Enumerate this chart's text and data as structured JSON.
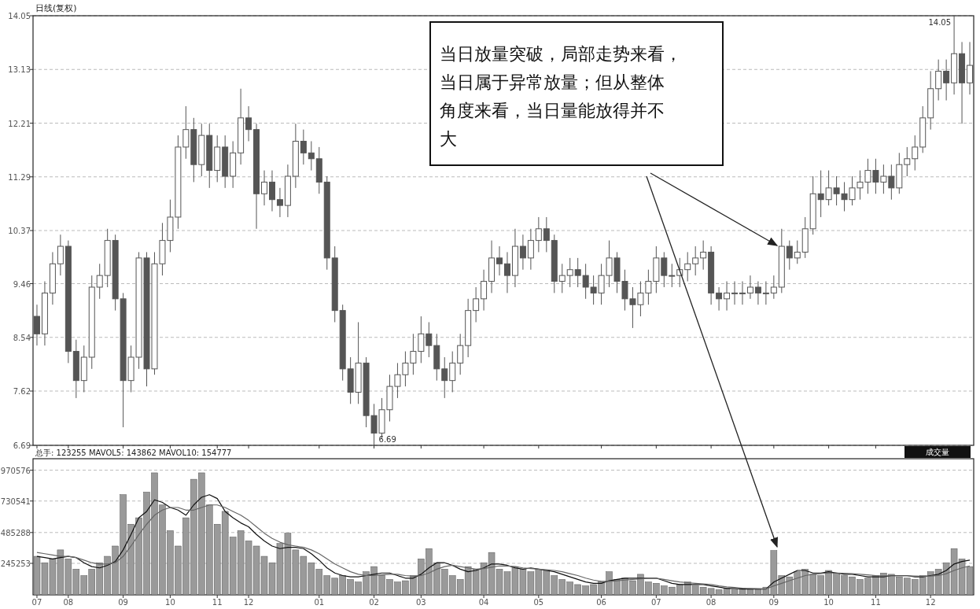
{
  "chart_data": [
    {
      "type": "candlestick",
      "title": "日线(复权)",
      "categories": [
        "07",
        null,
        null,
        null,
        "08",
        null,
        null,
        null,
        null,
        null,
        null,
        "09",
        null,
        null,
        null,
        null,
        null,
        "10",
        null,
        null,
        null,
        null,
        null,
        "11",
        null,
        null,
        null,
        "12",
        null,
        null,
        null,
        null,
        null,
        null,
        null,
        null,
        "01",
        null,
        null,
        null,
        null,
        null,
        null,
        "02",
        null,
        null,
        null,
        null,
        null,
        "03",
        null,
        null,
        null,
        null,
        null,
        null,
        null,
        "04",
        null,
        null,
        null,
        null,
        null,
        null,
        "05",
        null,
        null,
        null,
        null,
        null,
        null,
        null,
        "06",
        null,
        null,
        null,
        null,
        null,
        null,
        "07",
        null,
        null,
        null,
        null,
        null,
        null,
        "08",
        null,
        null,
        null,
        null,
        null,
        null,
        null,
        "09",
        null,
        null,
        null,
        null,
        null,
        null,
        "10",
        null,
        null,
        null,
        null,
        null,
        "11",
        null,
        null,
        null,
        null,
        null,
        null,
        "12",
        null,
        null,
        null,
        null,
        null
      ],
      "ohlc": [
        [
          8.9,
          9.1,
          8.4,
          8.6
        ],
        [
          8.6,
          9.5,
          8.4,
          9.3
        ],
        [
          9.3,
          10.0,
          9.1,
          9.8
        ],
        [
          9.8,
          10.3,
          9.6,
          10.1
        ],
        [
          10.1,
          10.2,
          8.1,
          8.3
        ],
        [
          8.3,
          8.5,
          7.5,
          7.8
        ],
        [
          7.8,
          8.4,
          7.6,
          8.2
        ],
        [
          8.2,
          9.6,
          8.0,
          9.4
        ],
        [
          9.4,
          9.8,
          9.2,
          9.6
        ],
        [
          9.6,
          10.4,
          9.4,
          10.2
        ],
        [
          10.2,
          10.3,
          9.0,
          9.2
        ],
        [
          9.2,
          9.3,
          7.0,
          7.8
        ],
        [
          7.8,
          8.4,
          7.6,
          8.2
        ],
        [
          8.2,
          10.0,
          8.0,
          9.9
        ],
        [
          9.9,
          10.0,
          7.7,
          8.0
        ],
        [
          8.0,
          10.0,
          7.9,
          9.8
        ],
        [
          9.8,
          10.5,
          9.6,
          10.2
        ],
        [
          10.2,
          10.9,
          10.0,
          10.6
        ],
        [
          10.6,
          12.0,
          10.4,
          11.8
        ],
        [
          11.8,
          12.5,
          11.6,
          12.1
        ],
        [
          12.1,
          12.3,
          11.2,
          11.5
        ],
        [
          11.5,
          12.2,
          11.3,
          12.0
        ],
        [
          12.0,
          12.2,
          11.1,
          11.4
        ],
        [
          11.4,
          12.0,
          11.2,
          11.8
        ],
        [
          11.8,
          12.0,
          11.1,
          11.3
        ],
        [
          11.3,
          11.9,
          11.1,
          11.7
        ],
        [
          11.7,
          12.8,
          11.5,
          12.3
        ],
        [
          12.3,
          12.5,
          11.9,
          12.1
        ],
        [
          12.1,
          12.2,
          10.4,
          11.0
        ],
        [
          11.0,
          11.4,
          10.8,
          11.2
        ],
        [
          11.2,
          11.4,
          10.7,
          10.9
        ],
        [
          10.9,
          11.1,
          10.6,
          10.8
        ],
        [
          10.8,
          11.5,
          10.6,
          11.3
        ],
        [
          11.3,
          12.2,
          11.1,
          11.9
        ],
        [
          11.9,
          12.1,
          11.5,
          11.7
        ],
        [
          11.7,
          11.9,
          11.4,
          11.6
        ],
        [
          11.6,
          11.8,
          11.0,
          11.2
        ],
        [
          11.2,
          11.3,
          9.7,
          9.9
        ],
        [
          9.9,
          10.1,
          8.8,
          9.0
        ],
        [
          9.0,
          9.1,
          7.8,
          8.0
        ],
        [
          8.0,
          8.2,
          7.4,
          7.6
        ],
        [
          7.6,
          8.8,
          7.4,
          8.1
        ],
        [
          8.1,
          8.2,
          7.0,
          7.2
        ],
        [
          7.2,
          7.4,
          6.69,
          6.9
        ],
        [
          6.9,
          7.5,
          6.8,
          7.3
        ],
        [
          7.3,
          7.9,
          7.1,
          7.7
        ],
        [
          7.7,
          8.1,
          7.5,
          7.9
        ],
        [
          7.9,
          8.3,
          7.7,
          8.1
        ],
        [
          8.1,
          8.6,
          7.9,
          8.3
        ],
        [
          8.3,
          8.9,
          8.1,
          8.6
        ],
        [
          8.6,
          8.8,
          8.2,
          8.4
        ],
        [
          8.4,
          8.6,
          7.8,
          8.0
        ],
        [
          8.0,
          8.2,
          7.5,
          7.8
        ],
        [
          7.8,
          8.3,
          7.6,
          8.1
        ],
        [
          8.1,
          8.6,
          7.9,
          8.4
        ],
        [
          8.4,
          9.2,
          8.2,
          9.0
        ],
        [
          9.0,
          9.4,
          8.8,
          9.2
        ],
        [
          9.2,
          9.7,
          9.0,
          9.5
        ],
        [
          9.5,
          10.2,
          9.3,
          9.9
        ],
        [
          9.9,
          10.1,
          9.6,
          9.8
        ],
        [
          9.8,
          10.0,
          9.3,
          9.6
        ],
        [
          9.6,
          10.4,
          9.4,
          10.1
        ],
        [
          10.1,
          10.3,
          9.7,
          9.9
        ],
        [
          9.9,
          10.4,
          9.7,
          10.2
        ],
        [
          10.2,
          10.6,
          10.0,
          10.4
        ],
        [
          10.4,
          10.6,
          10.0,
          10.2
        ],
        [
          10.2,
          10.3,
          9.3,
          9.5
        ],
        [
          9.5,
          9.8,
          9.3,
          9.6
        ],
        [
          9.6,
          9.9,
          9.4,
          9.7
        ],
        [
          9.7,
          9.9,
          9.4,
          9.6
        ],
        [
          9.6,
          9.8,
          9.2,
          9.4
        ],
        [
          9.4,
          9.6,
          9.1,
          9.3
        ],
        [
          9.3,
          9.8,
          9.1,
          9.6
        ],
        [
          9.6,
          10.2,
          9.4,
          9.9
        ],
        [
          9.9,
          10.0,
          9.3,
          9.5
        ],
        [
          9.5,
          9.7,
          9.0,
          9.2
        ],
        [
          9.2,
          9.4,
          8.7,
          9.1
        ],
        [
          9.1,
          9.5,
          8.9,
          9.3
        ],
        [
          9.3,
          9.7,
          9.1,
          9.5
        ],
        [
          9.5,
          10.1,
          9.3,
          9.9
        ],
        [
          9.9,
          10.0,
          9.4,
          9.6
        ],
        [
          9.6,
          9.8,
          9.4,
          9.6
        ],
        [
          9.6,
          9.9,
          9.4,
          9.7
        ],
        [
          9.7,
          10.0,
          9.5,
          9.8
        ],
        [
          9.8,
          10.1,
          9.6,
          9.9
        ],
        [
          9.9,
          10.2,
          9.7,
          10.0
        ],
        [
          10.0,
          10.1,
          9.1,
          9.3
        ],
        [
          9.3,
          9.4,
          9.0,
          9.2
        ],
        [
          9.2,
          9.5,
          9.0,
          9.3
        ],
        [
          9.3,
          9.5,
          9.1,
          9.3
        ],
        [
          9.3,
          9.5,
          9.1,
          9.3
        ],
        [
          9.3,
          9.6,
          9.2,
          9.4
        ],
        [
          9.4,
          9.5,
          9.1,
          9.3
        ],
        [
          9.3,
          9.5,
          9.1,
          9.3
        ],
        [
          9.3,
          9.6,
          9.2,
          9.4
        ],
        [
          9.4,
          10.4,
          9.3,
          10.1
        ],
        [
          10.1,
          10.2,
          9.7,
          9.9
        ],
        [
          9.9,
          10.2,
          9.8,
          10.0
        ],
        [
          10.0,
          10.6,
          9.9,
          10.4
        ],
        [
          10.4,
          11.3,
          10.3,
          11.0
        ],
        [
          11.0,
          11.4,
          10.6,
          10.9
        ],
        [
          10.9,
          11.4,
          10.8,
          11.1
        ],
        [
          11.1,
          11.3,
          10.8,
          11.0
        ],
        [
          11.0,
          11.2,
          10.7,
          10.9
        ],
        [
          10.9,
          11.3,
          10.8,
          11.1
        ],
        [
          11.1,
          11.4,
          10.9,
          11.2
        ],
        [
          11.2,
          11.6,
          11.0,
          11.4
        ],
        [
          11.4,
          11.6,
          11.0,
          11.2
        ],
        [
          11.2,
          11.5,
          11.0,
          11.3
        ],
        [
          11.3,
          11.5,
          10.9,
          11.1
        ],
        [
          11.1,
          11.7,
          11.0,
          11.5
        ],
        [
          11.5,
          11.8,
          11.3,
          11.6
        ],
        [
          11.6,
          12.0,
          11.4,
          11.8
        ],
        [
          11.8,
          12.5,
          11.7,
          12.3
        ],
        [
          12.3,
          13.1,
          12.1,
          12.8
        ],
        [
          12.8,
          13.3,
          12.6,
          13.1
        ],
        [
          13.1,
          13.3,
          12.6,
          12.9
        ],
        [
          12.9,
          14.05,
          12.7,
          13.4
        ],
        [
          13.4,
          13.6,
          12.2,
          12.9
        ],
        [
          12.9,
          13.6,
          12.7,
          13.2
        ]
      ],
      "color": "#555555",
      "ylim": [
        6.69,
        14.05
      ],
      "yticks": [
        6.69,
        7.62,
        8.54,
        9.46,
        10.37,
        11.29,
        12.21,
        13.13,
        14.05
      ],
      "grid": "y",
      "tick_labels": "y",
      "annotations": [
        "当日放量突破，局部走势来看，当日属于异常放量；但从整体角度来看，当日量能放得并不大",
        "14.05",
        "6.69"
      ]
    },
    {
      "type": "bar",
      "categories": [
        "07",
        null,
        null,
        null,
        "08",
        null,
        null,
        null,
        null,
        null,
        null,
        "09",
        null,
        null,
        null,
        null,
        null,
        "10",
        null,
        null,
        null,
        null,
        null,
        "11",
        null,
        null,
        null,
        "12",
        null,
        null,
        null,
        null,
        null,
        null,
        null,
        null,
        "01",
        null,
        null,
        null,
        null,
        null,
        null,
        "02",
        null,
        null,
        null,
        null,
        null,
        "03",
        null,
        null,
        null,
        null,
        null,
        null,
        null,
        "04",
        null,
        null,
        null,
        null,
        null,
        null,
        "05",
        null,
        null,
        null,
        null,
        null,
        null,
        null,
        "06",
        null,
        null,
        null,
        null,
        null,
        null,
        "07",
        null,
        null,
        null,
        null,
        null,
        null,
        "08",
        null,
        null,
        null,
        null,
        null,
        null,
        null,
        "09",
        null,
        null,
        null,
        null,
        null,
        null,
        "10",
        null,
        null,
        null,
        null,
        null,
        "11",
        null,
        null,
        null,
        null,
        null,
        null,
        "12",
        null,
        null,
        null,
        null,
        null
      ],
      "series": [
        {
          "type": "bar",
          "color": "#9a9a9a",
          "values": [
            300000,
            250000,
            280000,
            350000,
            280000,
            200000,
            150000,
            200000,
            250000,
            300000,
            380000,
            780000,
            550000,
            600000,
            800000,
            950000,
            700000,
            500000,
            380000,
            600000,
            900000,
            950000,
            700000,
            550000,
            650000,
            450000,
            500000,
            420000,
            380000,
            300000,
            250000,
            400000,
            480000,
            350000,
            300000,
            250000,
            200000,
            150000,
            130000,
            150000,
            120000,
            100000,
            180000,
            220000,
            150000,
            120000,
            100000,
            110000,
            150000,
            280000,
            360000,
            250000,
            200000,
            150000,
            120000,
            220000,
            200000,
            250000,
            330000,
            200000,
            180000,
            220000,
            200000,
            180000,
            200000,
            190000,
            150000,
            120000,
            100000,
            80000,
            70000,
            80000,
            100000,
            180000,
            120000,
            130000,
            110000,
            160000,
            100000,
            90000,
            70000,
            60000,
            80000,
            100000,
            70000,
            60000,
            50000,
            40000,
            50000,
            40000,
            50000,
            40000,
            40000,
            60000,
            345000,
            150000,
            140000,
            180000,
            200000,
            160000,
            150000,
            190000,
            170000,
            150000,
            140000,
            120000,
            130000,
            150000,
            170000,
            160000,
            140000,
            130000,
            120000,
            150000,
            180000,
            200000,
            250000,
            360000,
            280000,
            220000
          ]
        },
        {
          "type": "line",
          "color": "#111111",
          "values": [
            300000,
            290000,
            280000,
            290000,
            300000,
            290000,
            250000,
            220000,
            210000,
            230000,
            260000,
            350000,
            470000,
            600000,
            650000,
            740000,
            720000,
            680000,
            660000,
            620000,
            700000,
            760000,
            780000,
            750000,
            650000,
            600000,
            560000,
            530000,
            470000,
            420000,
            380000,
            360000,
            370000,
            370000,
            360000,
            320000,
            270000,
            210000,
            170000,
            150000,
            140000,
            140000,
            150000,
            160000,
            170000,
            170000,
            150000,
            130000,
            130000,
            160000,
            210000,
            250000,
            250000,
            230000,
            200000,
            180000,
            190000,
            210000,
            240000,
            240000,
            230000,
            210000,
            200000,
            210000,
            200000,
            190000,
            180000,
            160000,
            140000,
            120000,
            100000,
            90000,
            90000,
            110000,
            120000,
            130000,
            130000,
            130000,
            130000,
            130000,
            110000,
            90000,
            80000,
            80000,
            80000,
            80000,
            70000,
            60000,
            50000,
            50000,
            45000,
            45000,
            45000,
            45000,
            100000,
            130000,
            160000,
            190000,
            190000,
            170000,
            170000,
            180000,
            170000,
            160000,
            160000,
            150000,
            140000,
            140000,
            140000,
            150000,
            150000,
            150000,
            140000,
            140000,
            150000,
            160000,
            190000,
            240000,
            260000,
            270000
          ]
        },
        {
          "type": "line",
          "color": "#666666",
          "values": [
            330000,
            320000,
            310000,
            300000,
            300000,
            290000,
            270000,
            250000,
            240000,
            240000,
            250000,
            300000,
            380000,
            470000,
            550000,
            620000,
            660000,
            680000,
            680000,
            660000,
            660000,
            680000,
            700000,
            700000,
            680000,
            650000,
            620000,
            580000,
            530000,
            480000,
            440000,
            410000,
            390000,
            380000,
            370000,
            350000,
            320000,
            280000,
            240000,
            210000,
            180000,
            160000,
            150000,
            150000,
            155000,
            160000,
            160000,
            150000,
            145000,
            150000,
            170000,
            200000,
            220000,
            230000,
            220000,
            210000,
            200000,
            205000,
            215000,
            225000,
            225000,
            220000,
            210000,
            205000,
            200000,
            195000,
            190000,
            180000,
            165000,
            150000,
            130000,
            115000,
            105000,
            105000,
            110000,
            115000,
            120000,
            125000,
            130000,
            130000,
            120000,
            110000,
            100000,
            95000,
            90000,
            85000,
            80000,
            70000,
            62000,
            57000,
            52000,
            50000,
            48000,
            47000,
            70000,
            90000,
            110000,
            130000,
            150000,
            160000,
            165000,
            170000,
            170000,
            168000,
            165000,
            160000,
            155000,
            150000,
            148000,
            148000,
            148000,
            148000,
            146000,
            145000,
            146000,
            150000,
            165000,
            190000,
            210000,
            225000
          ]
        }
      ],
      "ylim": [
        0,
        1060000
      ],
      "yticks": [
        245253,
        485288,
        730541,
        970576
      ],
      "grid": "y",
      "annotations": [
        "总手: 123255 MAVOL5: 143862 MAVOL10: 154777",
        "成交量"
      ]
    }
  ]
}
